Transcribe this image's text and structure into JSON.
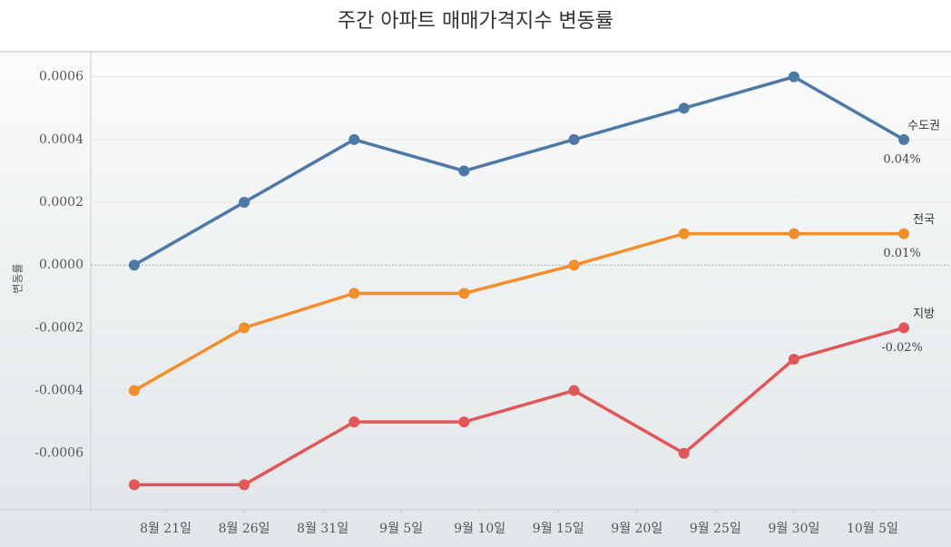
{
  "chart_data": {
    "type": "line",
    "title": "주간 아파트 매매가격지수 변동률",
    "y_label": "변동률",
    "x": [
      "08-19",
      "08-26",
      "09-02",
      "09-09",
      "09-16",
      "09-23",
      "09-30",
      "10-07"
    ],
    "xlim": [
      "08-16",
      "10-10"
    ],
    "xticks": [
      {
        "value": "08-21",
        "label": "8월 21일"
      },
      {
        "value": "08-26",
        "label": "8월 26일"
      },
      {
        "value": "08-31",
        "label": "8월 31일"
      },
      {
        "value": "09-05",
        "label": "9월 5일"
      },
      {
        "value": "09-10",
        "label": "9월 10일"
      },
      {
        "value": "09-15",
        "label": "9월 15일"
      },
      {
        "value": "09-20",
        "label": "9월 20일"
      },
      {
        "value": "09-25",
        "label": "9월 25일"
      },
      {
        "value": "09-30",
        "label": "9월 30일"
      },
      {
        "value": "10-05",
        "label": "10월 5일"
      }
    ],
    "ylim": [
      -0.00078,
      0.00068
    ],
    "yticks": [
      0.0006,
      0.0004,
      0.0002,
      {
        "value": 0,
        "label": "0.0000"
      },
      -0.0002,
      -0.0004,
      -0.0006
    ],
    "grid": true,
    "series": [
      {
        "name": "수도권",
        "color": "#4e79a7",
        "values": [
          0,
          0.0002,
          0.0004,
          0.0003,
          0.0004,
          0.0005,
          0.0006,
          0.0004
        ],
        "value_labels": [
          null,
          null,
          null,
          null,
          null,
          null,
          null,
          "0.04%"
        ]
      },
      {
        "name": "전국",
        "color": "#f28e2b",
        "values": [
          -0.0004,
          -0.0002,
          -9e-05,
          -9e-05,
          0,
          0.0001,
          0.0001,
          0.0001
        ],
        "value_labels": [
          null,
          null,
          null,
          null,
          null,
          null,
          null,
          "0.01%"
        ]
      },
      {
        "name": "지방",
        "color": "#e15759",
        "values": [
          -0.0007,
          -0.0007,
          -0.0005,
          -0.0005,
          -0.0004,
          -0.0006,
          -0.0003,
          -0.0002
        ],
        "value_labels": [
          null,
          null,
          null,
          null,
          null,
          null,
          null,
          "-0.02%"
        ]
      }
    ]
  }
}
